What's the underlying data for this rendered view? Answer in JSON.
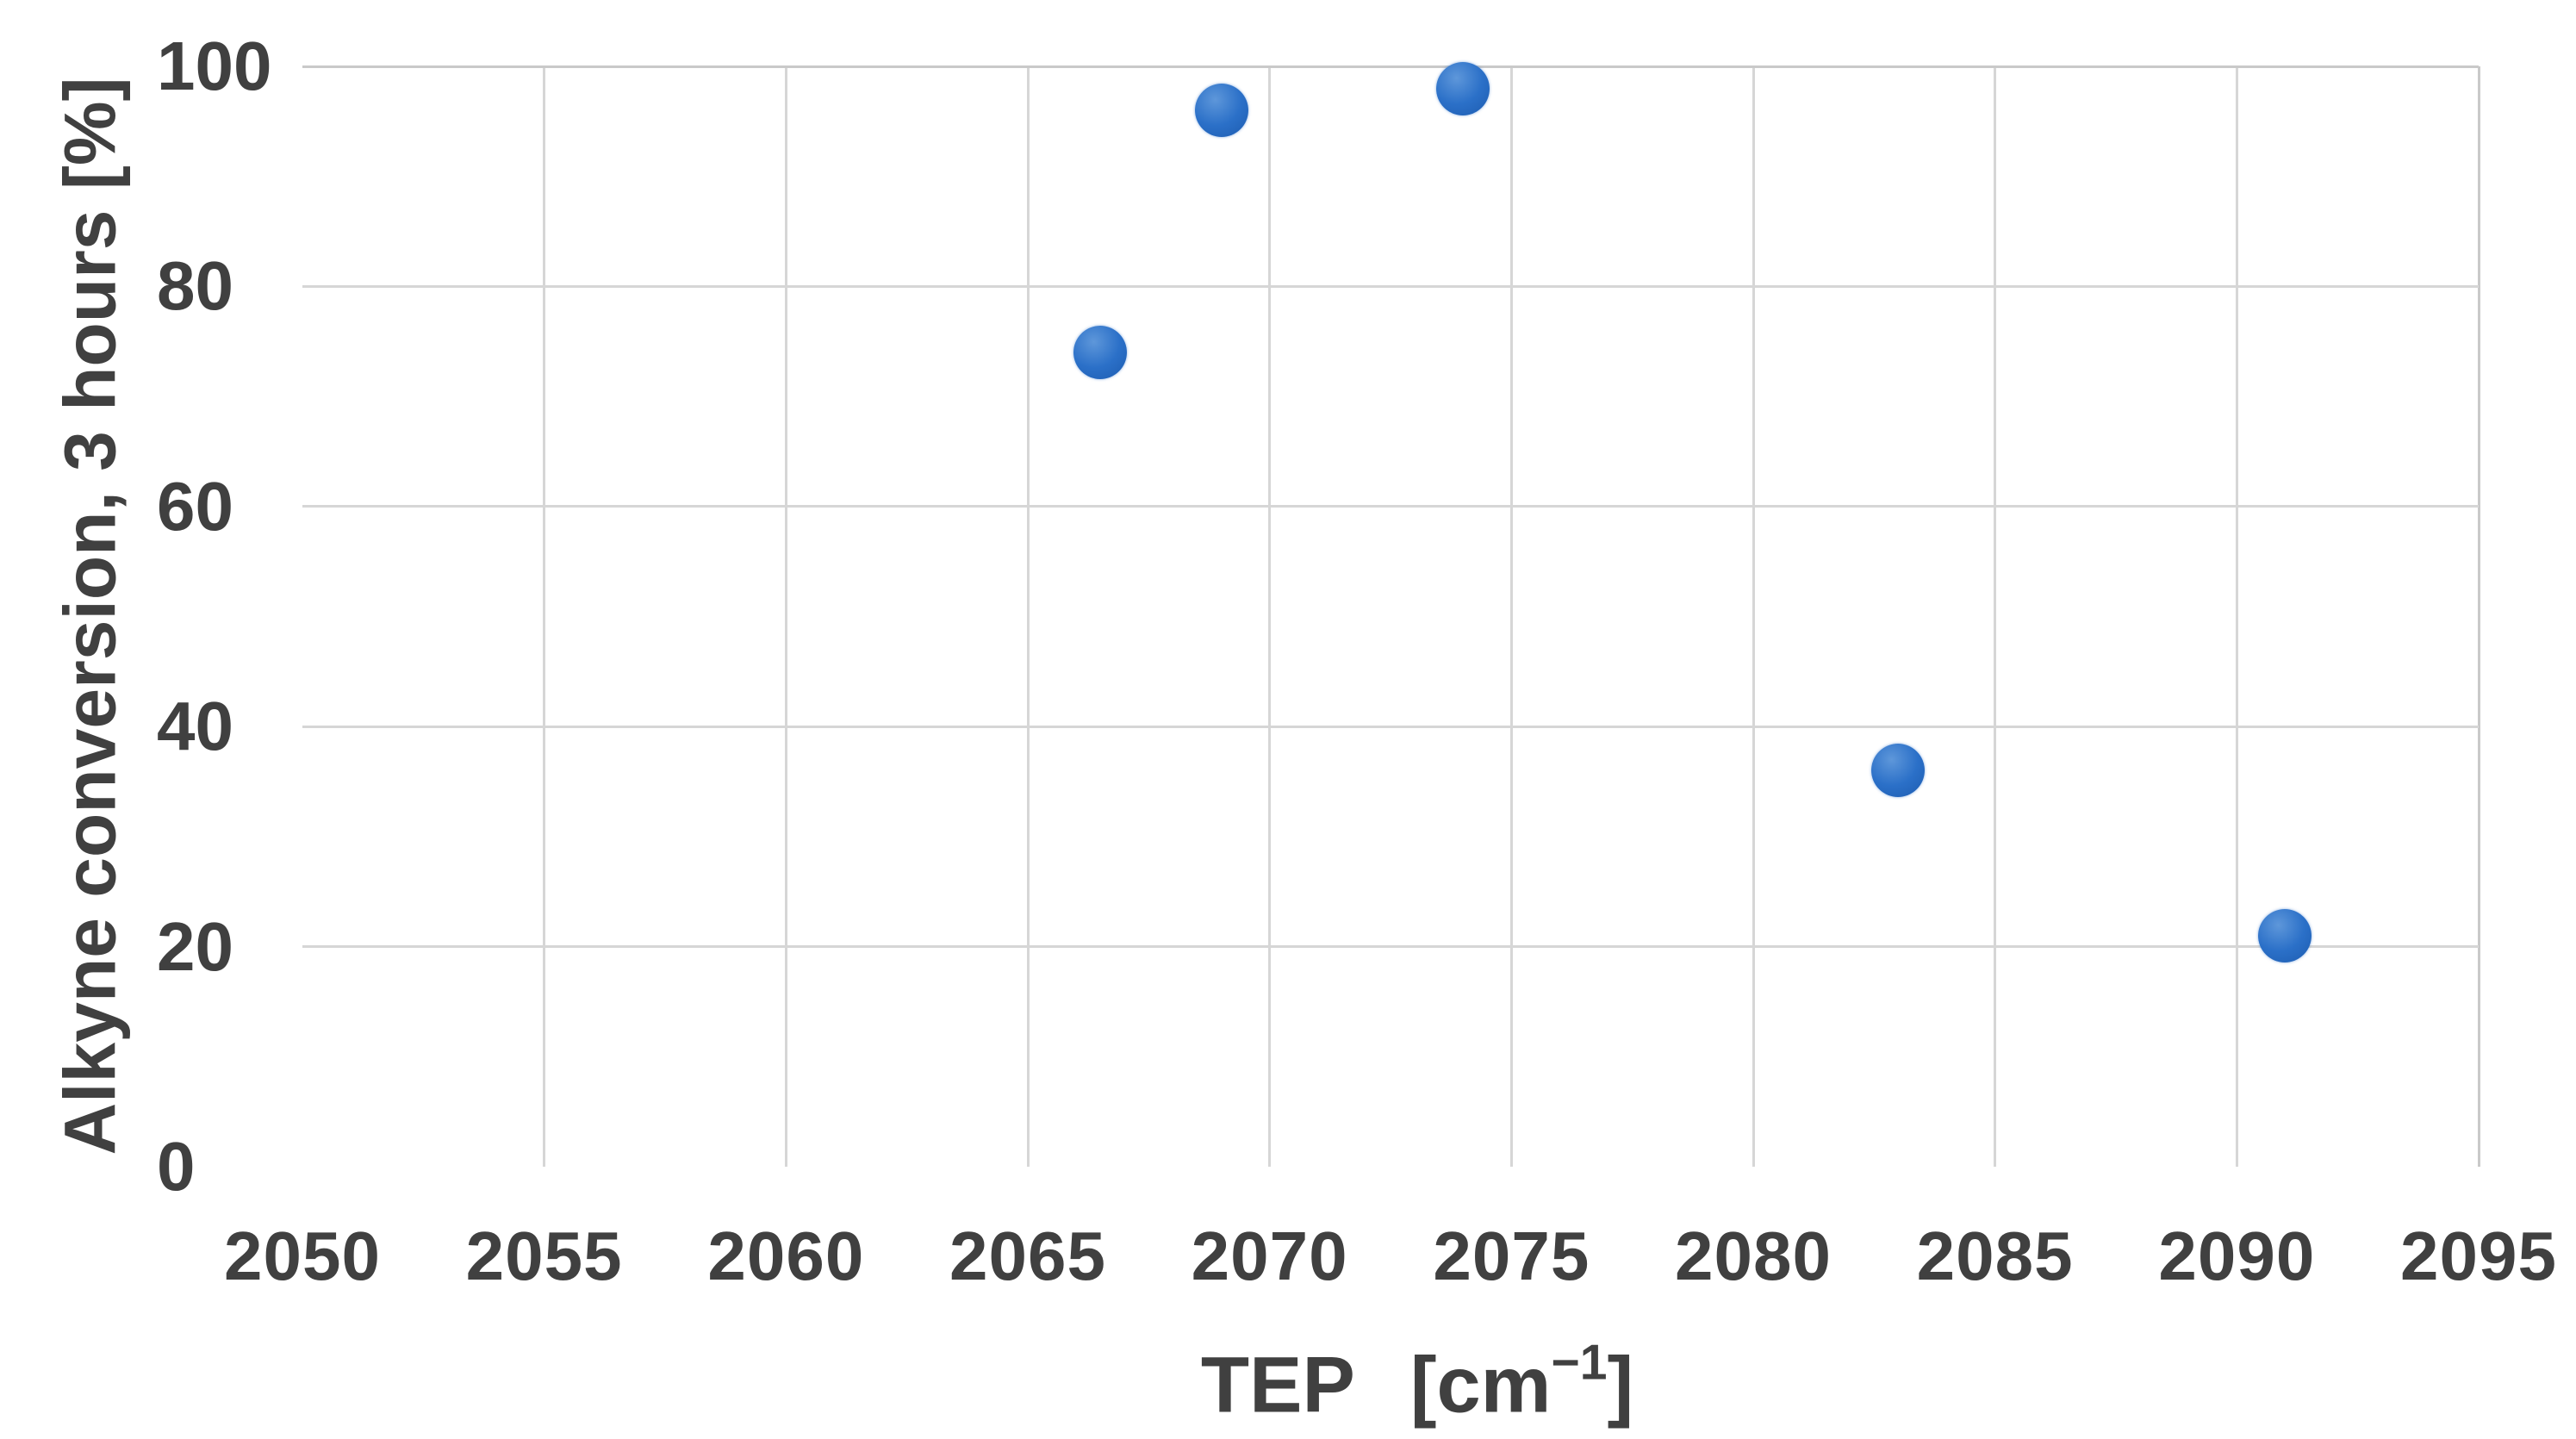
{
  "chart_data": {
    "type": "scatter",
    "title": "",
    "xlabel": "TEP",
    "xlabel_unit": {
      "open": "[cm",
      "sup": "−1",
      "close": "]"
    },
    "ylabel": "Alkyne conversion, 3 hours [%]",
    "xlim": [
      2050,
      2095
    ],
    "ylim": [
      0,
      100
    ],
    "x_ticks": [
      "2050",
      "2055",
      "2060",
      "2065",
      "2070",
      "2075",
      "2080",
      "2085",
      "2090",
      "2095"
    ],
    "x_tick_values": [
      2050,
      2055,
      2060,
      2065,
      2070,
      2075,
      2080,
      2085,
      2090,
      2095
    ],
    "y_ticks": [
      "0",
      "20",
      "40",
      "60",
      "80",
      "100"
    ],
    "y_tick_values": [
      0,
      20,
      40,
      60,
      80,
      100
    ],
    "grid": true,
    "legend": "none",
    "points": [
      {
        "x": 2066.5,
        "y": 74
      },
      {
        "x": 2069,
        "y": 96
      },
      {
        "x": 2074,
        "y": 98
      },
      {
        "x": 2083,
        "y": 36
      },
      {
        "x": 2091,
        "y": 21
      }
    ],
    "marker_color": "#2b70c8",
    "marker_highlight": "#5e97da",
    "marker_shadow": "#1d5cb0",
    "grid_color": "#d6d6d6",
    "edge_color": "#c9c9c9",
    "text_color": "#404040",
    "background_color": "#ffffff"
  }
}
